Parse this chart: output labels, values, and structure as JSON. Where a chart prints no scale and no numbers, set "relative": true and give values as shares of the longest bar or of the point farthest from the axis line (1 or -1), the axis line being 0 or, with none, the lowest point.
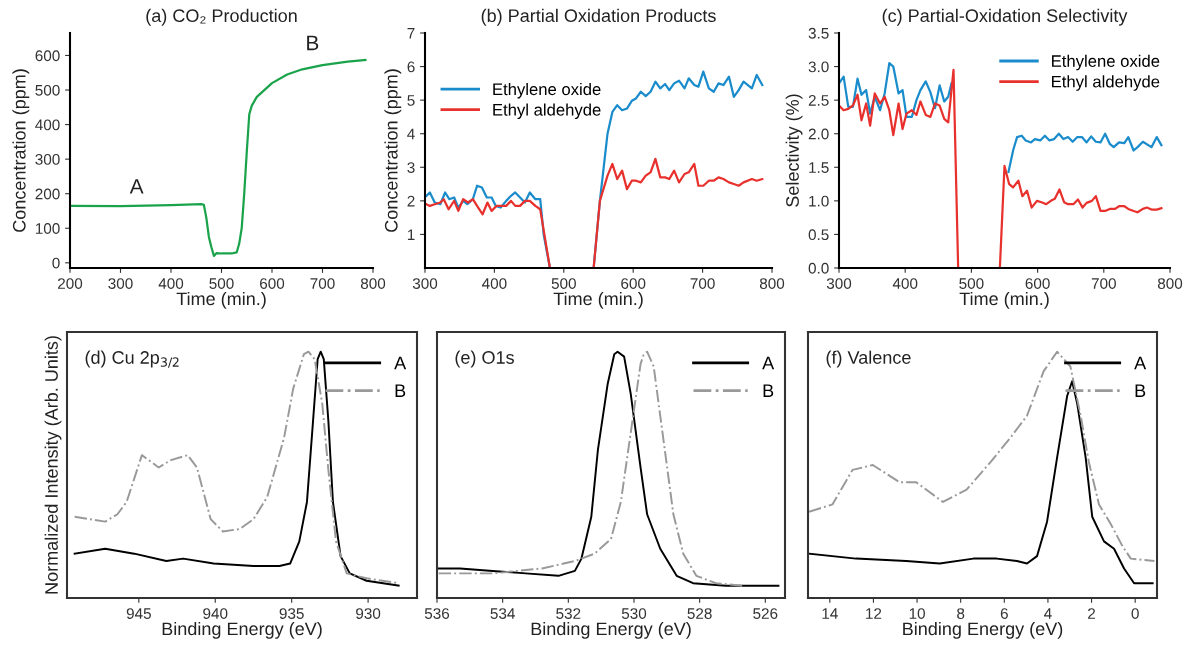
{
  "chart_data": [
    {
      "type": "line",
      "title": "(a) CO₂ Production",
      "xlabel": "Time (min.)",
      "ylabel": "Concentration (ppm)",
      "xlim": [
        200,
        800
      ],
      "ylim": [
        -15,
        665
      ],
      "xticks": [
        200,
        300,
        400,
        500,
        600,
        700,
        800
      ],
      "yticks": [
        0,
        100,
        200,
        300,
        400,
        500,
        600
      ],
      "annotations": [
        "A",
        "B"
      ],
      "series": [
        {
          "color": "#1aa34a",
          "x": [
            200,
            300,
            400,
            460,
            465,
            470,
            475,
            480,
            485,
            490,
            500,
            520,
            530,
            535,
            540,
            545,
            550,
            555,
            560,
            570,
            600,
            630,
            660,
            700,
            750,
            785
          ],
          "values": [
            165,
            164,
            167,
            170,
            168,
            130,
            75,
            45,
            20,
            28,
            27,
            27,
            30,
            55,
            100,
            200,
            320,
            430,
            455,
            480,
            520,
            545,
            560,
            572,
            582,
            587
          ]
        }
      ]
    },
    {
      "type": "line",
      "title": "(b) Partial Oxidation Products",
      "xlabel": "Time (min.)",
      "ylabel": "Concentration (ppm)",
      "xlim": [
        300,
        800
      ],
      "ylim": [
        0,
        7
      ],
      "xticks": [
        300,
        400,
        500,
        600,
        700,
        800
      ],
      "yticks": [
        1,
        2,
        3,
        4,
        5,
        6,
        7
      ],
      "legend": "upper left",
      "series": [
        {
          "name": "Ethylene oxide",
          "color": "#1a8ccc",
          "x": [
            302,
            307,
            314,
            322,
            329,
            335,
            342,
            348,
            355,
            361,
            369,
            375,
            382,
            389,
            396,
            402,
            409,
            417,
            424,
            430,
            437,
            444,
            451,
            459,
            466,
            471,
            480,
            543,
            552,
            563,
            570,
            577,
            584,
            591,
            598,
            604,
            611,
            618,
            625,
            632,
            639,
            646,
            652,
            659,
            666,
            674,
            680,
            688,
            694,
            701,
            709,
            716,
            723,
            730,
            738,
            745,
            752,
            759,
            771,
            778,
            786
          ],
          "values": [
            2.15,
            2.25,
            1.95,
            1.9,
            2.25,
            2.05,
            2.1,
            1.8,
            2.0,
            1.9,
            2.05,
            2.45,
            2.4,
            2.1,
            2.1,
            1.85,
            1.8,
            2.0,
            2.15,
            2.25,
            2.1,
            1.95,
            2.25,
            2.05,
            2.05,
            1.0,
            0,
            0,
            2.0,
            4.0,
            4.65,
            4.85,
            4.7,
            4.75,
            4.98,
            5.05,
            5.25,
            5.12,
            5.25,
            5.55,
            5.35,
            5.48,
            5.3,
            5.5,
            5.58,
            5.35,
            5.65,
            5.45,
            5.4,
            5.85,
            5.35,
            5.25,
            5.5,
            5.45,
            5.7,
            5.1,
            5.3,
            5.55,
            5.35,
            5.75,
            5.45
          ]
        },
        {
          "name": "Ethyl aldehyde",
          "color": "#e8312d",
          "x": [
            302,
            307,
            314,
            322,
            327,
            334,
            342,
            348,
            355,
            362,
            369,
            375,
            383,
            390,
            396,
            403,
            411,
            417,
            424,
            430,
            437,
            444,
            451,
            459,
            466,
            480,
            543,
            552,
            563,
            570,
            577,
            584,
            591,
            598,
            604,
            611,
            618,
            625,
            632,
            639,
            646,
            652,
            659,
            666,
            674,
            680,
            688,
            694,
            701,
            709,
            716,
            723,
            730,
            738,
            745,
            752,
            759,
            771,
            778,
            786
          ],
          "values": [
            1.9,
            1.85,
            1.9,
            1.95,
            2.05,
            1.75,
            2.0,
            1.7,
            2.05,
            1.95,
            2.05,
            1.85,
            1.6,
            1.95,
            1.7,
            1.85,
            1.85,
            1.85,
            2.0,
            1.85,
            1.85,
            2.0,
            2.0,
            1.85,
            1.75,
            0,
            0,
            2.0,
            2.75,
            3.1,
            2.65,
            2.9,
            2.35,
            2.6,
            2.6,
            2.55,
            2.75,
            2.85,
            3.25,
            2.7,
            2.7,
            2.65,
            2.9,
            2.55,
            2.8,
            2.85,
            3.1,
            2.45,
            2.45,
            2.6,
            2.6,
            2.7,
            2.65,
            2.55,
            2.5,
            2.45,
            2.55,
            2.65,
            2.6,
            2.65
          ]
        }
      ]
    },
    {
      "type": "line",
      "title": "(c) Partial-Oxidation Selectivity",
      "xlabel": "Time (min.)",
      "ylabel": "Selectivity (%)",
      "xlim": [
        300,
        800
      ],
      "ylim": [
        0,
        3.5
      ],
      "xticks": [
        300,
        400,
        500,
        600,
        700,
        800
      ],
      "yticks": [
        {
          "value": 0,
          "label": "0.0"
        },
        {
          "value": 0.5,
          "label": "0.5"
        },
        {
          "value": 1,
          "label": "1.0"
        },
        {
          "value": 1.5,
          "label": "1.5"
        },
        {
          "value": 2,
          "label": "2.0"
        },
        {
          "value": 2.5,
          "label": "2.5"
        },
        {
          "value": 3,
          "label": "3.0"
        },
        {
          "value": 3.5,
          "label": "3.5"
        }
      ],
      "legend": "upper right",
      "series": [
        {
          "name": "Ethylene oxide",
          "color": "#1a8ccc",
          "x": [
            300,
            307,
            314,
            321,
            328,
            334,
            341,
            347,
            354,
            362,
            369,
            376,
            382,
            390,
            396,
            402,
            410,
            417,
            423,
            431,
            438,
            445,
            452,
            459,
            465,
            470,
            475,
            548,
            556,
            563,
            569,
            576,
            582,
            590,
            596,
            604,
            611,
            618,
            625,
            632,
            639,
            646,
            653,
            660,
            667,
            674,
            681,
            688,
            695,
            702,
            709,
            715,
            723,
            731,
            737,
            745,
            751,
            759,
            772,
            780,
            787
          ],
          "values": [
            2.75,
            2.85,
            2.4,
            2.4,
            2.82,
            2.58,
            2.65,
            2.3,
            2.55,
            2.35,
            2.6,
            3.05,
            3.0,
            2.6,
            2.65,
            2.25,
            2.25,
            2.5,
            2.65,
            2.78,
            2.62,
            2.38,
            2.72,
            2.48,
            2.55,
            2.75,
            null,
            null,
            1.43,
            1.75,
            1.95,
            1.97,
            1.9,
            1.87,
            1.92,
            1.9,
            1.97,
            1.9,
            1.92,
            2.0,
            1.92,
            1.95,
            1.88,
            1.95,
            1.95,
            1.87,
            1.96,
            1.88,
            1.87,
            2.0,
            1.85,
            1.8,
            1.87,
            1.86,
            1.95,
            1.75,
            1.8,
            1.88,
            1.8,
            1.95,
            1.83
          ]
        },
        {
          "name": "Ethyl aldehyde",
          "color": "#e8312d",
          "x": [
            300,
            307,
            314,
            321,
            328,
            334,
            341,
            347,
            354,
            362,
            369,
            376,
            382,
            390,
            396,
            402,
            410,
            417,
            423,
            431,
            438,
            445,
            452,
            459,
            465,
            473,
            480,
            543,
            550,
            557,
            563,
            571,
            577,
            584,
            591,
            599,
            606,
            613,
            620,
            626,
            633,
            640,
            646,
            654,
            661,
            668,
            674,
            682,
            688,
            695,
            702,
            709,
            717,
            723,
            731,
            737,
            745,
            751,
            759,
            765,
            772,
            780,
            787
          ],
          "values": [
            2.42,
            2.35,
            2.37,
            2.42,
            2.58,
            2.2,
            2.45,
            2.12,
            2.6,
            2.45,
            2.55,
            2.35,
            1.98,
            2.45,
            2.07,
            2.3,
            2.35,
            2.28,
            2.48,
            2.28,
            2.25,
            2.45,
            2.42,
            2.22,
            2.17,
            2.95,
            0,
            0,
            1.52,
            1.25,
            1.2,
            1.3,
            1.07,
            1.15,
            0.9,
            1.0,
            0.98,
            0.95,
            1.0,
            1.03,
            1.17,
            0.98,
            0.95,
            0.95,
            1.02,
            0.9,
            0.97,
            1.0,
            1.07,
            0.85,
            0.85,
            0.88,
            0.88,
            0.92,
            0.92,
            0.88,
            0.85,
            0.83,
            0.88,
            0.9,
            0.87,
            0.87,
            0.89
          ]
        }
      ]
    },
    {
      "type": "line",
      "relative": true,
      "tick_labels": "x",
      "title": "(d) Cu 2p$_{3/2}$",
      "xlabel": "Binding Energy (eV)",
      "ylabel": "Normalized Intensity (Arb. Units)",
      "xlim": [
        949.7,
        926.8
      ],
      "xticks": [
        945,
        940,
        935,
        930
      ],
      "legend": "upper right",
      "series": [
        {
          "name": "A",
          "color": "#000000",
          "line_style": "solid",
          "x": [
            949.2,
            947.2,
            945.3,
            943.2,
            942.1,
            940.1,
            937.5,
            935.8,
            935.1,
            934.5,
            934.0,
            933.6,
            933.3,
            933.1,
            932.9,
            932.6,
            932.3,
            931.8,
            931.2,
            930.1,
            928.0
          ],
          "values": [
            0.18,
            0.2,
            0.18,
            0.15,
            0.16,
            0.14,
            0.13,
            0.13,
            0.14,
            0.23,
            0.39,
            0.72,
            0.97,
            1.0,
            0.97,
            0.72,
            0.39,
            0.17,
            0.1,
            0.07,
            0.05
          ]
        },
        {
          "name": "B",
          "color": "#999999",
          "line_style": "dashdot",
          "x": [
            949.2,
            947.2,
            946.4,
            945.8,
            944.8,
            943.7,
            942.9,
            941.8,
            941.2,
            940.3,
            939.5,
            938.4,
            937.5,
            936.6,
            935.5,
            934.9,
            934.2,
            933.9,
            933.5,
            933.0,
            932.6,
            932.1,
            931.4,
            930.1,
            928.0
          ],
          "values": [
            0.33,
            0.31,
            0.34,
            0.39,
            0.58,
            0.53,
            0.56,
            0.58,
            0.53,
            0.32,
            0.27,
            0.28,
            0.32,
            0.41,
            0.65,
            0.85,
            0.99,
            1.0,
            0.97,
            0.79,
            0.52,
            0.23,
            0.1,
            0.08,
            0.06
          ]
        }
      ]
    },
    {
      "type": "line",
      "relative": true,
      "tick_labels": "x",
      "title": "(e) O1s",
      "xlabel": "Binding Energy (eV)",
      "xlim": [
        536,
        525.4
      ],
      "xticks": [
        536,
        534,
        532,
        530,
        528,
        526
      ],
      "legend": "upper right",
      "series": [
        {
          "name": "A",
          "color": "#000000",
          "line_style": "solid",
          "x": [
            535.95,
            535.3,
            534.3,
            533.3,
            532.3,
            531.8,
            531.6,
            531.3,
            531.1,
            530.8,
            530.6,
            530.5,
            530.3,
            530.1,
            529.8,
            529.6,
            529.2,
            528.7,
            528.2,
            527.2,
            525.6
          ],
          "values": [
            0.12,
            0.12,
            0.11,
            0.1,
            0.09,
            0.11,
            0.16,
            0.33,
            0.6,
            0.87,
            0.99,
            1.0,
            0.98,
            0.83,
            0.53,
            0.34,
            0.2,
            0.09,
            0.06,
            0.05,
            0.05
          ]
        },
        {
          "name": "B",
          "color": "#999999",
          "line_style": "dashdot",
          "x": [
            535.95,
            534.3,
            532.8,
            531.8,
            531.2,
            530.7,
            530.4,
            530.1,
            529.8,
            529.7,
            529.6,
            529.4,
            529.1,
            528.8,
            528.5,
            528.1,
            527.5,
            526.7
          ],
          "values": [
            0.1,
            0.1,
            0.12,
            0.15,
            0.18,
            0.24,
            0.39,
            0.67,
            0.95,
            0.99,
            1.0,
            0.94,
            0.64,
            0.34,
            0.18,
            0.09,
            0.06,
            0.05
          ]
        }
      ]
    },
    {
      "type": "line",
      "relative": true,
      "tick_labels": "x",
      "title": "(f) Valence",
      "xlabel": "Binding Energy (eV)",
      "xlim": [
        15,
        -1
      ],
      "xticks": [
        14,
        12,
        10,
        8,
        6,
        4,
        2,
        0
      ],
      "legend": "upper right",
      "series": [
        {
          "name": "A",
          "color": "#000000",
          "line_style": "solid",
          "x": [
            14.95,
            12.8,
            10.5,
            8.96,
            7.42,
            6.35,
            5.42,
            4.96,
            4.5,
            4.04,
            3.58,
            3.12,
            2.89,
            2.66,
            2.27,
            1.97,
            1.43,
            0.97,
            0.51,
            0.05,
            -0.8
          ],
          "values": [
            0.18,
            0.16,
            0.15,
            0.14,
            0.16,
            0.16,
            0.15,
            0.14,
            0.17,
            0.31,
            0.57,
            0.82,
            0.88,
            0.79,
            0.57,
            0.33,
            0.23,
            0.2,
            0.12,
            0.06,
            0.06
          ]
        },
        {
          "name": "B",
          "color": "#999999",
          "line_style": "dashdot",
          "x": [
            14.95,
            13.88,
            12.96,
            12.03,
            10.8,
            10.04,
            8.81,
            7.73,
            6.65,
            5.73,
            4.96,
            4.2,
            3.58,
            2.97,
            2.5,
            2.12,
            1.66,
            1.12,
            0.58,
            0.2,
            -0.88
          ],
          "values": [
            0.35,
            0.38,
            0.52,
            0.54,
            0.47,
            0.47,
            0.39,
            0.44,
            0.55,
            0.65,
            0.74,
            0.92,
            1.0,
            0.94,
            0.74,
            0.55,
            0.38,
            0.3,
            0.21,
            0.16,
            0.15
          ]
        }
      ]
    }
  ]
}
